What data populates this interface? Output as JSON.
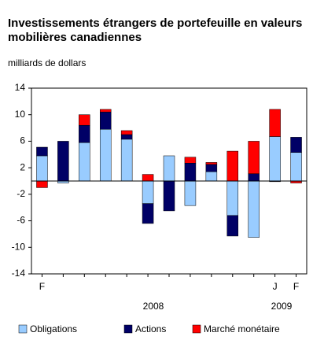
{
  "chart_data": {
    "type": "stacked_bar",
    "title": [
      "Investissements étrangers de portefeuille en valeurs",
      "mobilières canadiennes"
    ],
    "y_axis_label": "milliards de dollars",
    "categories": [
      "F",
      null,
      null,
      null,
      null,
      null,
      null,
      null,
      null,
      null,
      null,
      "J",
      "F"
    ],
    "annotations": [
      "2008",
      "2009"
    ],
    "series": [
      {
        "name": "Obligations",
        "color": "#99ccff",
        "values": [
          3.8,
          -0.3,
          5.8,
          7.8,
          6.3,
          -3.4,
          3.8,
          -3.7,
          1.4,
          -5.2,
          -8.5,
          6.7,
          4.3
        ]
      },
      {
        "name": "Actions",
        "color": "#000066",
        "values": [
          1.3,
          6.0,
          2.6,
          2.6,
          0.7,
          -3.0,
          -4.5,
          2.7,
          1.1,
          -3.1,
          1.1,
          -0.1,
          2.3
        ]
      },
      {
        "name": "Marché monétaire",
        "color": "#ff0000",
        "values": [
          -1.0,
          0,
          1.6,
          0.4,
          0.6,
          1.0,
          0,
          0.9,
          0.3,
          4.5,
          4.9,
          4.1,
          -0.3
        ]
      }
    ],
    "ylim": [
      -14,
      14
    ],
    "yticks": [
      -14,
      -10,
      -6,
      -2,
      2,
      6,
      10,
      14
    ]
  }
}
